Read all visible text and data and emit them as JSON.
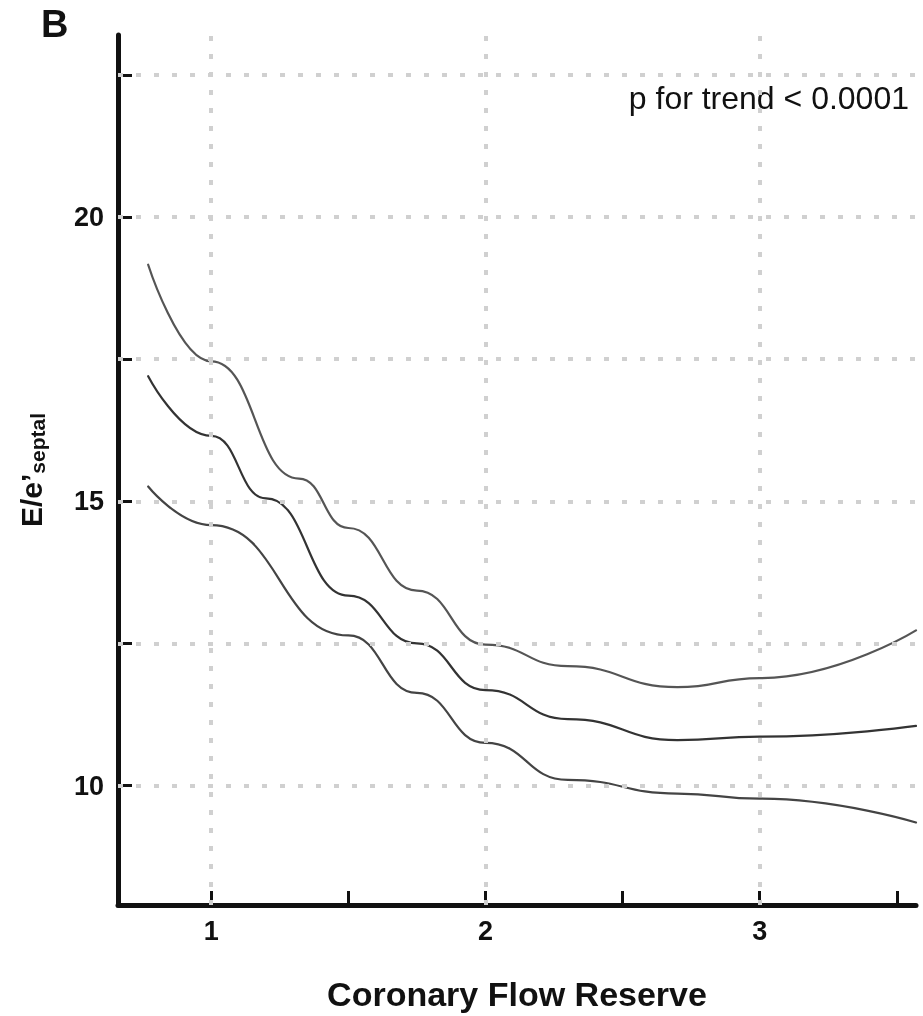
{
  "chart_data": {
    "type": "line",
    "title": "B",
    "xlabel": "Coronary Flow Reserve",
    "ylabel": "E/e’$_{septal}$",
    "annotations": [
      "p for trend < 0.0001"
    ],
    "xlim": [
      0.66,
      3.57
    ],
    "xticks": [
      1,
      {
        "value": 1.5,
        "label": null
      },
      2,
      {
        "value": 2.5,
        "label": null
      },
      3,
      {
        "value": 3.5,
        "label": null
      }
    ],
    "ylim": [
      7.9,
      23.2
    ],
    "yticks": [
      10,
      {
        "value": 12.5,
        "label": null
      },
      15,
      {
        "value": 17.5,
        "label": null
      },
      20,
      {
        "value": 22.5,
        "label": null
      }
    ],
    "grid": true,
    "marker": "none",
    "line_style": "solid",
    "series": [
      {
        "color": "#555555",
        "x": [
          0.77,
          1,
          1.32,
          1.5,
          1.75,
          2,
          2.3,
          2.7,
          3,
          3.57
        ],
        "values": [
          19.16,
          17.46,
          15.4,
          14.53,
          13.43,
          12.48,
          12.1,
          11.73,
          11.89,
          12.73
        ]
      },
      {
        "color": "#333333",
        "x": [
          0.77,
          1,
          1.2,
          1.5,
          1.75,
          2,
          2.3,
          2.7,
          3,
          3.57
        ],
        "values": [
          17.2,
          16.15,
          15.05,
          13.34,
          12.5,
          11.68,
          11.17,
          10.8,
          10.86,
          11.05
        ]
      },
      {
        "color": "#444444",
        "x": [
          0.77,
          1,
          1.5,
          1.75,
          2,
          2.3,
          2.7,
          3,
          3.57
        ],
        "values": [
          15.26,
          14.58,
          12.64,
          11.63,
          10.75,
          10.1,
          9.86,
          9.77,
          9.35
        ]
      }
    ]
  }
}
